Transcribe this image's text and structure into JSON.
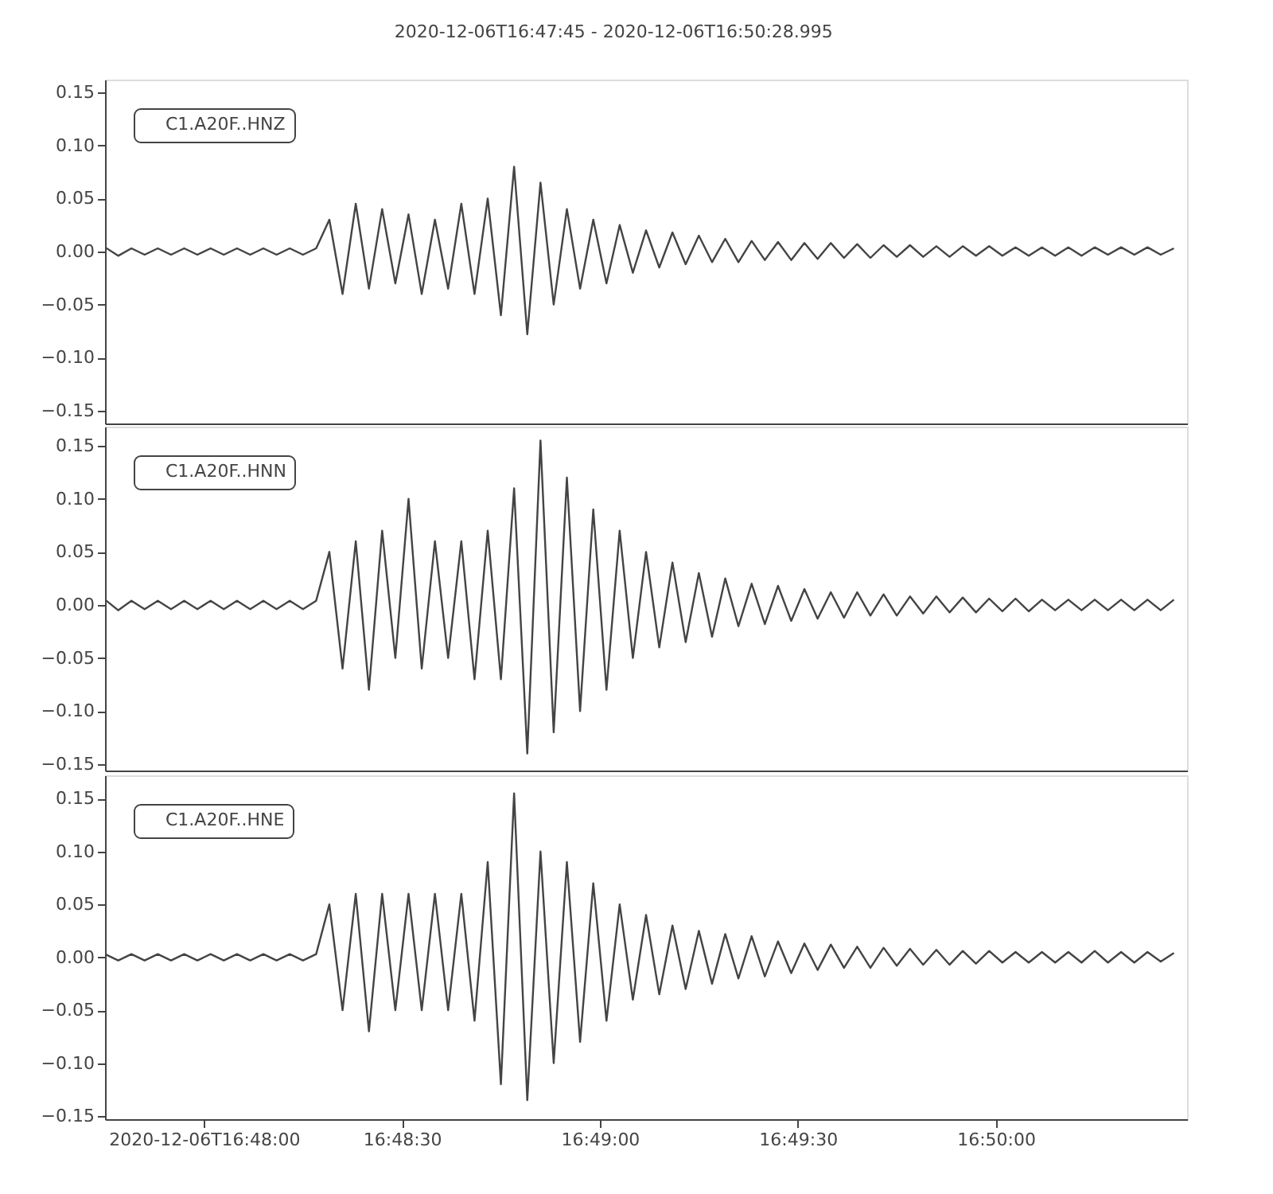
{
  "chart_data": [
    {
      "type": "line",
      "title": "2020-12-06T16:47:45  -  2020-12-06T16:50:28.995",
      "legend": "top left",
      "tick_labels": "y",
      "x": [
        "2020-12-06T16:47:45",
        "2020-12-06T16:47:47",
        "2020-12-06T16:47:49",
        "2020-12-06T16:47:51",
        "2020-12-06T16:47:53",
        "2020-12-06T16:47:55",
        "2020-12-06T16:47:57",
        "2020-12-06T16:47:59",
        "2020-12-06T16:48:01",
        "2020-12-06T16:48:03",
        "2020-12-06T16:48:05",
        "2020-12-06T16:48:07",
        "2020-12-06T16:48:09",
        "2020-12-06T16:48:11",
        "2020-12-06T16:48:13",
        "2020-12-06T16:48:15",
        "2020-12-06T16:48:17",
        "2020-12-06T16:48:19",
        "2020-12-06T16:48:21",
        "2020-12-06T16:48:23",
        "2020-12-06T16:48:25",
        "2020-12-06T16:48:27",
        "2020-12-06T16:48:29",
        "2020-12-06T16:48:31",
        "2020-12-06T16:48:33",
        "2020-12-06T16:48:35",
        "2020-12-06T16:48:37",
        "2020-12-06T16:48:39",
        "2020-12-06T16:48:41",
        "2020-12-06T16:48:43",
        "2020-12-06T16:48:45",
        "2020-12-06T16:48:47",
        "2020-12-06T16:48:49",
        "2020-12-06T16:48:51",
        "2020-12-06T16:48:53",
        "2020-12-06T16:48:55",
        "2020-12-06T16:48:57",
        "2020-12-06T16:48:59",
        "2020-12-06T16:49:01",
        "2020-12-06T16:49:03",
        "2020-12-06T16:49:05",
        "2020-12-06T16:49:07",
        "2020-12-06T16:49:09",
        "2020-12-06T16:49:11",
        "2020-12-06T16:49:13",
        "2020-12-06T16:49:15",
        "2020-12-06T16:49:17",
        "2020-12-06T16:49:19",
        "2020-12-06T16:49:21",
        "2020-12-06T16:49:23",
        "2020-12-06T16:49:25",
        "2020-12-06T16:49:27",
        "2020-12-06T16:49:29",
        "2020-12-06T16:49:31",
        "2020-12-06T16:49:33",
        "2020-12-06T16:49:35",
        "2020-12-06T16:49:37",
        "2020-12-06T16:49:39",
        "2020-12-06T16:49:41",
        "2020-12-06T16:49:43",
        "2020-12-06T16:49:45",
        "2020-12-06T16:49:47",
        "2020-12-06T16:49:49",
        "2020-12-06T16:49:51",
        "2020-12-06T16:49:53",
        "2020-12-06T16:49:55",
        "2020-12-06T16:49:57",
        "2020-12-06T16:49:59",
        "2020-12-06T16:50:01",
        "2020-12-06T16:50:03",
        "2020-12-06T16:50:05",
        "2020-12-06T16:50:07",
        "2020-12-06T16:50:09",
        "2020-12-06T16:50:11",
        "2020-12-06T16:50:13",
        "2020-12-06T16:50:15",
        "2020-12-06T16:50:17",
        "2020-12-06T16:50:19",
        "2020-12-06T16:50:21",
        "2020-12-06T16:50:23",
        "2020-12-06T16:50:25",
        "2020-12-06T16:50:27"
      ],
      "series": [
        {
          "name": "C1.A20F..HNZ",
          "color": "#444444",
          "values": [
            0.004,
            -0.004,
            0.003,
            -0.003,
            0.003,
            -0.003,
            0.003,
            -0.003,
            0.003,
            -0.003,
            0.003,
            -0.003,
            0.003,
            -0.003,
            0.003,
            -0.003,
            0.003,
            0.03,
            -0.04,
            0.045,
            -0.035,
            0.04,
            -0.03,
            0.035,
            -0.04,
            0.03,
            -0.035,
            0.045,
            -0.04,
            0.05,
            -0.06,
            0.08,
            -0.078,
            0.065,
            -0.05,
            0.04,
            -0.035,
            0.03,
            -0.03,
            0.025,
            -0.02,
            0.02,
            -0.015,
            0.018,
            -0.012,
            0.015,
            -0.01,
            0.012,
            -0.01,
            0.01,
            -0.008,
            0.009,
            -0.008,
            0.008,
            -0.007,
            0.008,
            -0.006,
            0.007,
            -0.006,
            0.006,
            -0.005,
            0.006,
            -0.005,
            0.005,
            -0.005,
            0.005,
            -0.004,
            0.005,
            -0.004,
            0.004,
            -0.004,
            0.004,
            -0.004,
            0.004,
            -0.004,
            0.004,
            -0.003,
            0.004,
            -0.003,
            0.004,
            -0.003,
            0.003
          ]
        }
      ],
      "xlim": [
        "2020-12-06T16:47:45",
        "2020-12-06T16:50:28.995"
      ],
      "ylim": [
        -0.162,
        0.162
      ],
      "yticks": [
        {
          "value": -0.15,
          "label": "−0.15"
        },
        {
          "value": -0.1,
          "label": "−0.10"
        },
        {
          "value": -0.05,
          "label": "−0.05"
        },
        {
          "value": 0,
          "label": "0.00"
        },
        {
          "value": 0.05,
          "label": "0.05"
        },
        {
          "value": 0.1,
          "label": "0.10"
        },
        {
          "value": 0.15,
          "label": "0.15"
        }
      ]
    },
    {
      "type": "line",
      "legend": "top left",
      "tick_labels": "y",
      "x": [
        "2020-12-06T16:47:45",
        "2020-12-06T16:47:47",
        "2020-12-06T16:47:49",
        "2020-12-06T16:47:51",
        "2020-12-06T16:47:53",
        "2020-12-06T16:47:55",
        "2020-12-06T16:47:57",
        "2020-12-06T16:47:59",
        "2020-12-06T16:48:01",
        "2020-12-06T16:48:03",
        "2020-12-06T16:48:05",
        "2020-12-06T16:48:07",
        "2020-12-06T16:48:09",
        "2020-12-06T16:48:11",
        "2020-12-06T16:48:13",
        "2020-12-06T16:48:15",
        "2020-12-06T16:48:17",
        "2020-12-06T16:48:19",
        "2020-12-06T16:48:21",
        "2020-12-06T16:48:23",
        "2020-12-06T16:48:25",
        "2020-12-06T16:48:27",
        "2020-12-06T16:48:29",
        "2020-12-06T16:48:31",
        "2020-12-06T16:48:33",
        "2020-12-06T16:48:35",
        "2020-12-06T16:48:37",
        "2020-12-06T16:48:39",
        "2020-12-06T16:48:41",
        "2020-12-06T16:48:43",
        "2020-12-06T16:48:45",
        "2020-12-06T16:48:47",
        "2020-12-06T16:48:49",
        "2020-12-06T16:48:51",
        "2020-12-06T16:48:53",
        "2020-12-06T16:48:55",
        "2020-12-06T16:48:57",
        "2020-12-06T16:48:59",
        "2020-12-06T16:49:01",
        "2020-12-06T16:49:03",
        "2020-12-06T16:49:05",
        "2020-12-06T16:49:07",
        "2020-12-06T16:49:09",
        "2020-12-06T16:49:11",
        "2020-12-06T16:49:13",
        "2020-12-06T16:49:15",
        "2020-12-06T16:49:17",
        "2020-12-06T16:49:19",
        "2020-12-06T16:49:21",
        "2020-12-06T16:49:23",
        "2020-12-06T16:49:25",
        "2020-12-06T16:49:27",
        "2020-12-06T16:49:29",
        "2020-12-06T16:49:31",
        "2020-12-06T16:49:33",
        "2020-12-06T16:49:35",
        "2020-12-06T16:49:37",
        "2020-12-06T16:49:39",
        "2020-12-06T16:49:41",
        "2020-12-06T16:49:43",
        "2020-12-06T16:49:45",
        "2020-12-06T16:49:47",
        "2020-12-06T16:49:49",
        "2020-12-06T16:49:51",
        "2020-12-06T16:49:53",
        "2020-12-06T16:49:55",
        "2020-12-06T16:49:57",
        "2020-12-06T16:49:59",
        "2020-12-06T16:50:01",
        "2020-12-06T16:50:03",
        "2020-12-06T16:50:05",
        "2020-12-06T16:50:07",
        "2020-12-06T16:50:09",
        "2020-12-06T16:50:11",
        "2020-12-06T16:50:13",
        "2020-12-06T16:50:15",
        "2020-12-06T16:50:17",
        "2020-12-06T16:50:19",
        "2020-12-06T16:50:21",
        "2020-12-06T16:50:23",
        "2020-12-06T16:50:25",
        "2020-12-06T16:50:27"
      ],
      "series": [
        {
          "name": "C1.A20F..HNN",
          "color": "#444444",
          "values": [
            0.005,
            -0.005,
            0.004,
            -0.004,
            0.004,
            -0.004,
            0.004,
            -0.004,
            0.004,
            -0.004,
            0.004,
            -0.004,
            0.004,
            -0.004,
            0.004,
            -0.004,
            0.004,
            0.05,
            -0.06,
            0.06,
            -0.08,
            0.07,
            -0.05,
            0.1,
            -0.06,
            0.06,
            -0.05,
            0.06,
            -0.07,
            0.07,
            -0.07,
            0.11,
            -0.14,
            0.155,
            -0.12,
            0.12,
            -0.1,
            0.09,
            -0.08,
            0.07,
            -0.05,
            0.05,
            -0.04,
            0.04,
            -0.035,
            0.03,
            -0.03,
            0.025,
            -0.02,
            0.02,
            -0.018,
            0.018,
            -0.015,
            0.015,
            -0.013,
            0.012,
            -0.012,
            0.012,
            -0.01,
            0.01,
            -0.01,
            0.008,
            -0.008,
            0.008,
            -0.007,
            0.007,
            -0.007,
            0.006,
            -0.006,
            0.006,
            -0.006,
            0.005,
            -0.005,
            0.005,
            -0.005,
            0.005,
            -0.005,
            0.005,
            -0.005,
            0.005,
            -0.005,
            0.005
          ]
        }
      ],
      "xlim": [
        "2020-12-06T16:47:45",
        "2020-12-06T16:50:28.995"
      ],
      "ylim": [
        -0.156,
        0.168
      ],
      "yticks": [
        {
          "value": -0.15,
          "label": "−0.15"
        },
        {
          "value": -0.1,
          "label": "−0.10"
        },
        {
          "value": -0.05,
          "label": "−0.05"
        },
        {
          "value": 0,
          "label": "0.00"
        },
        {
          "value": 0.05,
          "label": "0.05"
        },
        {
          "value": 0.1,
          "label": "0.10"
        },
        {
          "value": 0.15,
          "label": "0.15"
        }
      ]
    },
    {
      "type": "line",
      "legend": "top left",
      "x": [
        "2020-12-06T16:47:45",
        "2020-12-06T16:47:47",
        "2020-12-06T16:47:49",
        "2020-12-06T16:47:51",
        "2020-12-06T16:47:53",
        "2020-12-06T16:47:55",
        "2020-12-06T16:47:57",
        "2020-12-06T16:47:59",
        "2020-12-06T16:48:01",
        "2020-12-06T16:48:03",
        "2020-12-06T16:48:05",
        "2020-12-06T16:48:07",
        "2020-12-06T16:48:09",
        "2020-12-06T16:48:11",
        "2020-12-06T16:48:13",
        "2020-12-06T16:48:15",
        "2020-12-06T16:48:17",
        "2020-12-06T16:48:19",
        "2020-12-06T16:48:21",
        "2020-12-06T16:48:23",
        "2020-12-06T16:48:25",
        "2020-12-06T16:48:27",
        "2020-12-06T16:48:29",
        "2020-12-06T16:48:31",
        "2020-12-06T16:48:33",
        "2020-12-06T16:48:35",
        "2020-12-06T16:48:37",
        "2020-12-06T16:48:39",
        "2020-12-06T16:48:41",
        "2020-12-06T16:48:43",
        "2020-12-06T16:48:45",
        "2020-12-06T16:48:47",
        "2020-12-06T16:48:49",
        "2020-12-06T16:48:51",
        "2020-12-06T16:48:53",
        "2020-12-06T16:48:55",
        "2020-12-06T16:48:57",
        "2020-12-06T16:48:59",
        "2020-12-06T16:49:01",
        "2020-12-06T16:49:03",
        "2020-12-06T16:49:05",
        "2020-12-06T16:49:07",
        "2020-12-06T16:49:09",
        "2020-12-06T16:49:11",
        "2020-12-06T16:49:13",
        "2020-12-06T16:49:15",
        "2020-12-06T16:49:17",
        "2020-12-06T16:49:19",
        "2020-12-06T16:49:21",
        "2020-12-06T16:49:23",
        "2020-12-06T16:49:25",
        "2020-12-06T16:49:27",
        "2020-12-06T16:49:29",
        "2020-12-06T16:49:31",
        "2020-12-06T16:49:33",
        "2020-12-06T16:49:35",
        "2020-12-06T16:49:37",
        "2020-12-06T16:49:39",
        "2020-12-06T16:49:41",
        "2020-12-06T16:49:43",
        "2020-12-06T16:49:45",
        "2020-12-06T16:49:47",
        "2020-12-06T16:49:49",
        "2020-12-06T16:49:51",
        "2020-12-06T16:49:53",
        "2020-12-06T16:49:55",
        "2020-12-06T16:49:57",
        "2020-12-06T16:49:59",
        "2020-12-06T16:50:01",
        "2020-12-06T16:50:03",
        "2020-12-06T16:50:05",
        "2020-12-06T16:50:07",
        "2020-12-06T16:50:09",
        "2020-12-06T16:50:11",
        "2020-12-06T16:50:13",
        "2020-12-06T16:50:15",
        "2020-12-06T16:50:17",
        "2020-12-06T16:50:19",
        "2020-12-06T16:50:21",
        "2020-12-06T16:50:23",
        "2020-12-06T16:50:25",
        "2020-12-06T16:50:27"
      ],
      "series": [
        {
          "name": "C1.A20F..HNE",
          "color": "#444444",
          "values": [
            0.003,
            -0.003,
            0.003,
            -0.003,
            0.003,
            -0.003,
            0.003,
            -0.003,
            0.003,
            -0.003,
            0.003,
            -0.003,
            0.003,
            -0.003,
            0.003,
            -0.003,
            0.003,
            0.05,
            -0.05,
            0.06,
            -0.07,
            0.06,
            -0.05,
            0.06,
            -0.05,
            0.06,
            -0.05,
            0.06,
            -0.06,
            0.09,
            -0.12,
            0.155,
            -0.135,
            0.1,
            -0.1,
            0.09,
            -0.08,
            0.07,
            -0.06,
            0.05,
            -0.04,
            0.04,
            -0.035,
            0.03,
            -0.03,
            0.025,
            -0.025,
            0.022,
            -0.02,
            0.02,
            -0.018,
            0.015,
            -0.015,
            0.013,
            -0.012,
            0.012,
            -0.01,
            0.01,
            -0.01,
            0.009,
            -0.008,
            0.008,
            -0.007,
            0.007,
            -0.007,
            0.006,
            -0.006,
            0.006,
            -0.005,
            0.005,
            -0.005,
            0.005,
            -0.005,
            0.005,
            -0.005,
            0.006,
            -0.005,
            0.005,
            -0.005,
            0.005,
            -0.004,
            0.004
          ]
        }
      ],
      "xlim": [
        "2020-12-06T16:47:45",
        "2020-12-06T16:50:28.995"
      ],
      "ylim": [
        -0.153,
        0.172
      ],
      "xticks": [
        {
          "value": "2020-12-06T16:48:00",
          "label": "2020-12-06T16:48:00"
        },
        {
          "value": "2020-12-06T16:48:30",
          "label": "16:48:30"
        },
        {
          "value": "2020-12-06T16:49:00",
          "label": "16:49:00"
        },
        {
          "value": "2020-12-06T16:49:30",
          "label": "16:49:30"
        },
        {
          "value": "2020-12-06T16:50:00",
          "label": "16:50:00"
        }
      ],
      "yticks": [
        {
          "value": -0.15,
          "label": "−0.15"
        },
        {
          "value": -0.1,
          "label": "−0.10"
        },
        {
          "value": -0.05,
          "label": "−0.05"
        },
        {
          "value": 0,
          "label": "0.00"
        },
        {
          "value": 0.05,
          "label": "0.05"
        },
        {
          "value": 0.1,
          "label": "0.10"
        },
        {
          "value": 0.15,
          "label": "0.15"
        }
      ]
    }
  ]
}
